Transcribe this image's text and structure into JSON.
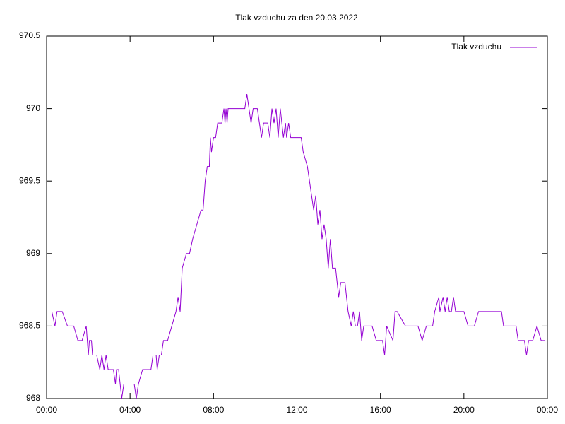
{
  "chart_data": {
    "type": "line",
    "title": "Tlak vzduchu za den 20.03.2022",
    "series": [
      {
        "name": "Tlak vzduchu",
        "color": "#9400d3",
        "x": [
          0.25,
          0.4,
          0.5,
          0.75,
          1.0,
          1.2,
          1.3,
          1.5,
          1.7,
          1.9,
          2.0,
          2.05,
          2.15,
          2.2,
          2.4,
          2.55,
          2.65,
          2.75,
          2.85,
          2.95,
          3.2,
          3.3,
          3.35,
          3.45,
          3.6,
          3.7,
          4.2,
          4.3,
          4.4,
          4.6,
          5.0,
          5.1,
          5.25,
          5.3,
          5.4,
          5.5,
          5.6,
          5.8,
          6.0,
          6.2,
          6.3,
          6.4,
          6.5,
          6.7,
          6.85,
          7.0,
          7.2,
          7.4,
          7.5,
          7.6,
          7.7,
          7.8,
          7.85,
          7.9,
          8.0,
          8.1,
          8.2,
          8.4,
          8.5,
          8.55,
          8.6,
          8.65,
          8.7,
          9.2,
          9.5,
          9.6,
          9.7,
          9.8,
          9.9,
          10.1,
          10.2,
          10.3,
          10.4,
          10.6,
          10.7,
          10.8,
          10.9,
          11.0,
          11.1,
          11.2,
          11.35,
          11.45,
          11.5,
          11.6,
          11.7,
          11.8,
          12.2,
          12.3,
          12.5,
          12.6,
          12.8,
          12.9,
          13.0,
          13.1,
          13.2,
          13.3,
          13.4,
          13.5,
          13.6,
          13.7,
          13.85,
          14.0,
          14.1,
          14.3,
          14.45,
          14.6,
          14.7,
          14.8,
          14.9,
          15.0,
          15.1,
          15.2,
          15.6,
          15.8,
          16.1,
          16.2,
          16.3,
          16.6,
          16.7,
          16.8,
          17.2,
          17.8,
          18.0,
          18.2,
          18.5,
          18.6,
          18.8,
          18.85,
          19.0,
          19.1,
          19.2,
          19.3,
          19.4,
          19.5,
          19.6,
          20.0,
          20.2,
          20.5,
          20.7,
          21.8,
          21.9,
          22.5,
          22.6,
          22.9,
          23.0,
          23.1,
          23.3,
          23.5,
          23.7,
          23.9
        ],
        "values": [
          968.6,
          968.5,
          968.6,
          968.6,
          968.5,
          968.5,
          968.5,
          968.4,
          968.4,
          968.5,
          968.3,
          968.4,
          968.4,
          968.3,
          968.3,
          968.2,
          968.3,
          968.2,
          968.3,
          968.2,
          968.2,
          968.1,
          968.2,
          968.2,
          968.0,
          968.1,
          968.1,
          968.0,
          968.1,
          968.2,
          968.2,
          968.3,
          968.3,
          968.2,
          968.3,
          968.3,
          968.4,
          968.4,
          968.5,
          968.6,
          968.7,
          968.6,
          968.9,
          969.0,
          969.0,
          969.1,
          969.2,
          969.3,
          969.3,
          969.5,
          969.6,
          969.6,
          969.8,
          969.7,
          969.8,
          969.8,
          969.9,
          969.9,
          970.0,
          969.9,
          970.0,
          969.9,
          970.0,
          970.0,
          970.0,
          970.1,
          970.0,
          969.9,
          970.0,
          970.0,
          969.9,
          969.8,
          969.9,
          969.9,
          969.8,
          970.0,
          969.9,
          970.0,
          969.8,
          970.0,
          969.8,
          969.9,
          969.8,
          969.9,
          969.8,
          969.8,
          969.8,
          969.7,
          969.6,
          969.5,
          969.3,
          969.4,
          969.2,
          969.3,
          969.1,
          969.2,
          969.1,
          968.9,
          969.1,
          968.9,
          968.9,
          968.7,
          968.8,
          968.8,
          968.6,
          968.5,
          968.6,
          968.5,
          968.5,
          968.6,
          968.4,
          968.5,
          968.5,
          968.4,
          968.4,
          968.3,
          968.5,
          968.4,
          968.6,
          968.6,
          968.5,
          968.5,
          968.4,
          968.5,
          968.5,
          968.6,
          968.7,
          968.6,
          968.7,
          968.6,
          968.7,
          968.6,
          968.6,
          968.7,
          968.6,
          968.6,
          968.5,
          968.5,
          968.6,
          968.6,
          968.5,
          968.5,
          968.4,
          968.4,
          968.3,
          968.4,
          968.4,
          968.5,
          968.4,
          968.4
        ]
      }
    ],
    "xlim": [
      0,
      24
    ],
    "xticks": [
      {
        "value": 0,
        "label": "00:00"
      },
      {
        "value": 4,
        "label": "04:00"
      },
      {
        "value": 8,
        "label": "08:00"
      },
      {
        "value": 12,
        "label": "12:00"
      },
      {
        "value": 16,
        "label": "16:00"
      },
      {
        "value": 20,
        "label": "20:00"
      },
      {
        "value": 24,
        "label": "00:00"
      }
    ],
    "ylim": [
      968,
      970.5
    ],
    "yticks": [
      968,
      968.5,
      969,
      969.5,
      970,
      970.5
    ],
    "legend": "top-right",
    "grid": false
  }
}
